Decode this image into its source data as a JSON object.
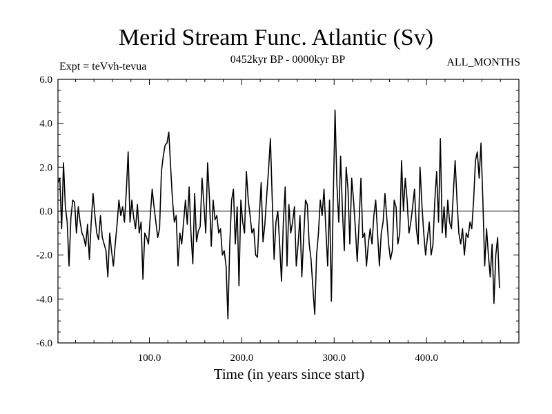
{
  "chart_data": {
    "type": "line",
    "title": "Merid Stream Func. Atlantic (Sv)",
    "subtitle_left": "Expt = teVvh-tevua",
    "subtitle_center": "0452kyr BP - 0000kyr BP",
    "subtitle_right": "ALL_MONTHS",
    "xlabel": "Time (in years since start)",
    "ylabel": "",
    "xlim": [
      1,
      500
    ],
    "ylim": [
      -6.0,
      6.0
    ],
    "x_ticks": [
      "100.0",
      "200.0",
      "300.0",
      "400.0"
    ],
    "x_tick_values": [
      100,
      200,
      300,
      400
    ],
    "y_ticks": [
      "6.0",
      "4.0",
      "2.0",
      "0.0",
      "-2.0",
      "-4.0",
      "-6.0"
    ],
    "y_tick_values": [
      6,
      4,
      2,
      0,
      -2,
      -4,
      -6
    ],
    "zero_line": true,
    "grid": false,
    "series": [
      {
        "color": "#000000",
        "x_start": 1,
        "x_step": 2,
        "values": [
          1.3,
          1.5,
          -0.8,
          2.2,
          0.2,
          -0.5,
          -2.5,
          -0.3,
          0.5,
          0.4,
          -1.0,
          0.2,
          -0.5,
          -1.0,
          -1.2,
          -1.6,
          -0.6,
          -2.2,
          -0.5,
          0.8,
          -0.2,
          -1.0,
          -1.3,
          -0.2,
          -1.2,
          -1.5,
          -1.8,
          -3.0,
          -1.0,
          -1.8,
          -2.5,
          -1.5,
          -0.6,
          0.5,
          -0.2,
          0.2,
          -0.5,
          0.9,
          2.7,
          -0.5,
          0.5,
          -0.3,
          -0.8,
          0.3,
          -1.0,
          -0.5,
          -3.1,
          -1.0,
          -1.2,
          -1.5,
          -0.2,
          1.0,
          0.2,
          -0.5,
          -1.2,
          -0.8,
          1.8,
          2.5,
          3.0,
          3.1,
          3.6,
          2.0,
          0.5,
          -0.5,
          -0.2,
          -2.5,
          -1.0,
          -1.5,
          -0.5,
          0.5,
          -0.6,
          1.1,
          -1.0,
          -2.4,
          0.8,
          -1.4,
          -0.9,
          -0.7,
          1.5,
          0.3,
          -1.0,
          2.2,
          0.6,
          -1.6,
          0.5,
          -0.4,
          -0.2,
          -1.0,
          -0.8,
          -2.0,
          -1.8,
          -2.5,
          -4.9,
          -1.5,
          0.5,
          1.0,
          -1.5,
          0.2,
          -3.4,
          0.5,
          -0.5,
          -1.0,
          1.8,
          0.5,
          -0.2,
          -1.0,
          -0.8,
          -2.0,
          -2.1,
          -0.2,
          1.3,
          -1.4,
          -0.6,
          0.7,
          1.9,
          3.3,
          0.5,
          -2.2,
          -0.5,
          0.0,
          -1.5,
          -3.2,
          -0.5,
          1.1,
          -2.5,
          0.3,
          -1.0,
          -0.5,
          0.2,
          -2.5,
          -1.5,
          -0.2,
          -3.0,
          -1.2,
          0.5,
          0.3,
          -1.5,
          -2.2,
          -3.5,
          -4.7,
          -2.0,
          -1.0,
          0.5,
          -0.2,
          1.0,
          -0.8,
          -2.5,
          0.5,
          -4.1,
          0.5,
          4.6,
          1.2,
          -0.5,
          2.5,
          0.0,
          -1.8,
          2.0,
          1.0,
          -1.5,
          1.5,
          0.5,
          -0.8,
          -2.3,
          -0.5,
          1.5,
          -1.2,
          -1.0,
          -2.5,
          -1.5,
          -0.8,
          -1.5,
          -0.2,
          0.5,
          -1.0,
          -2.5,
          -1.0,
          -0.5,
          0.8,
          -0.3,
          -1.5,
          -2.2,
          -1.8,
          0.5,
          0.2,
          -1.5,
          -1.0,
          2.3,
          0.0,
          1.5,
          0.5,
          -1.0,
          -0.5,
          0.2,
          1.0,
          -0.8,
          -1.5,
          2.0,
          0.3,
          -1.0,
          -2.0,
          -1.2,
          -0.5,
          -2.0,
          -1.5,
          0.5,
          1.8,
          -0.5,
          3.3,
          -1.0,
          0.2,
          -1.2,
          0.5,
          -0.5,
          -0.8,
          0.8,
          2.3,
          0.5,
          -1.0,
          -1.5,
          -0.8,
          -2.0,
          -1.0,
          -1.2,
          -0.5,
          -0.8,
          0.5,
          2.3,
          2.7,
          1.5,
          3.1,
          0.5,
          -2.5,
          -0.8,
          -2.0,
          -3.0,
          -1.5,
          -4.2,
          -2.0,
          -1.2,
          -3.5
        ]
      }
    ]
  }
}
